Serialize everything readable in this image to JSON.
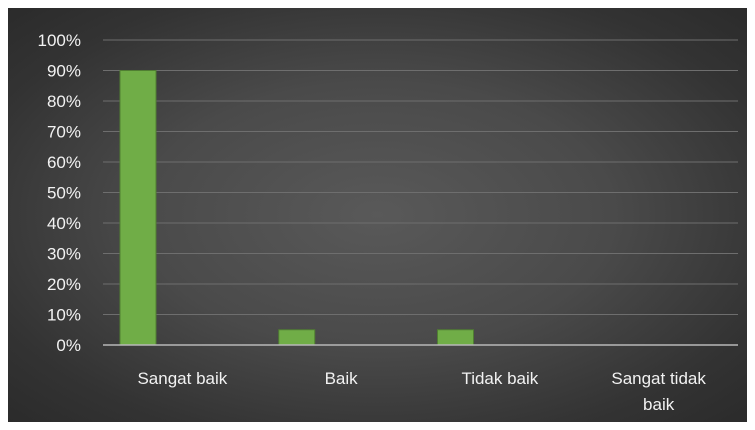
{
  "chart_data": {
    "type": "bar",
    "title": "",
    "xlabel": "",
    "ylabel": "",
    "categories": [
      [
        "Sangat baik"
      ],
      [
        "Baik"
      ],
      [
        "Tidak baik"
      ],
      [
        "Sangat tidak",
        "baik"
      ]
    ],
    "values": [
      0.9,
      0.05,
      0.05,
      0.0
    ],
    "ylim": [
      0,
      1
    ],
    "yticks": [
      {
        "value": 0.0,
        "label": "0%"
      },
      {
        "value": 0.1,
        "label": "10%"
      },
      {
        "value": 0.2,
        "label": "20%"
      },
      {
        "value": 0.3,
        "label": "30%"
      },
      {
        "value": 0.4,
        "label": "40%"
      },
      {
        "value": 0.5,
        "label": "50%"
      },
      {
        "value": 0.6,
        "label": "60%"
      },
      {
        "value": 0.7,
        "label": "70%"
      },
      {
        "value": 0.8,
        "label": "80%"
      },
      {
        "value": 0.9,
        "label": "90%"
      },
      {
        "value": 1.0,
        "label": "100%"
      }
    ],
    "grid": true,
    "legend": "none",
    "colors": {
      "bar_fill": "#70ad47",
      "bar_stroke": "#507e32",
      "background": "#404040",
      "text": "#f2f2f2"
    }
  }
}
